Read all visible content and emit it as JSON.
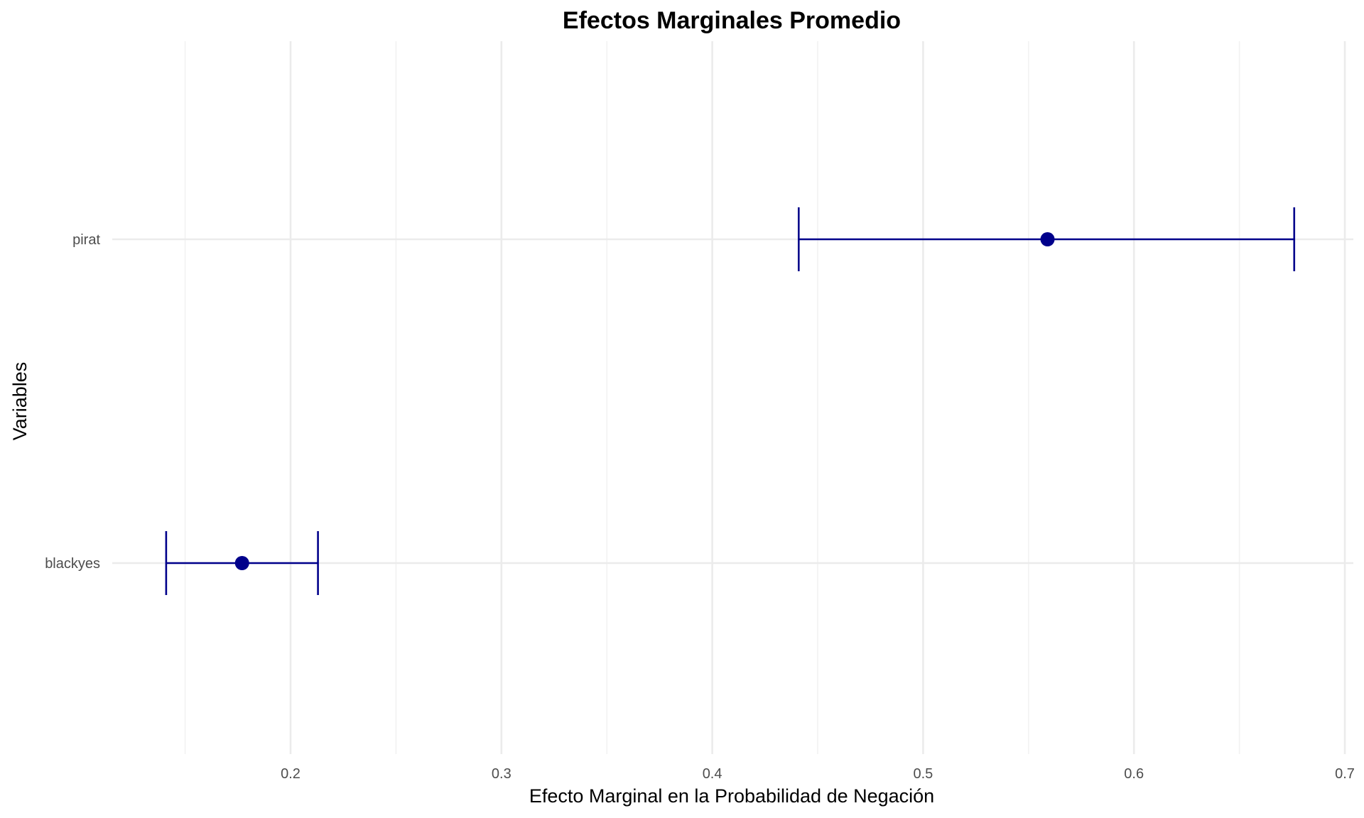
{
  "chart_data": {
    "type": "scatter",
    "title": "Efectos Marginales Promedio",
    "xlabel": "Efecto Marginal en la Probabilidad de Negación",
    "ylabel": "Variables",
    "xlim": [
      0.12,
      0.705
    ],
    "x_ticks": [
      0.2,
      0.3,
      0.4,
      0.5,
      0.6,
      0.7
    ],
    "x_tick_labels": [
      "0.2",
      "0.3",
      "0.4",
      "0.5",
      "0.6",
      "0.7"
    ],
    "x_minor_ticks": [
      0.15,
      0.25,
      0.35,
      0.45,
      0.55,
      0.65
    ],
    "categories": [
      "blackyes",
      "pirat"
    ],
    "points": [
      {
        "variable": "pirat",
        "estimate": 0.559,
        "lower": 0.441,
        "upper": 0.676
      },
      {
        "variable": "blackyes",
        "estimate": 0.177,
        "lower": 0.141,
        "upper": 0.213
      }
    ],
    "grid": true,
    "color": "#00008b"
  }
}
